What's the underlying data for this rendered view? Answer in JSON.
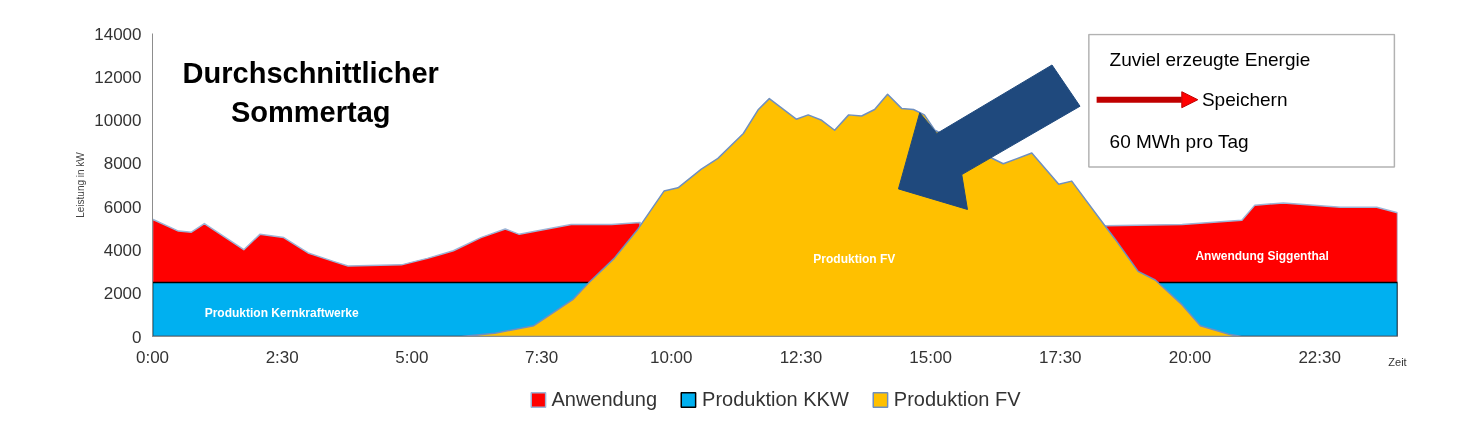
{
  "chart_data": {
    "type": "area",
    "title": "Durchschnittlicher\nSommertag",
    "xlabel": "Zeit",
    "ylabel": "Leistung in kW",
    "xlim": [
      0,
      24
    ],
    "ylim": [
      0,
      14000
    ],
    "xticks": [
      {
        "value": 0,
        "label": "0:00"
      },
      {
        "value": 2.5,
        "label": "2:30"
      },
      {
        "value": 5,
        "label": "5:00"
      },
      {
        "value": 7.5,
        "label": "7:30"
      },
      {
        "value": 10,
        "label": "10:00"
      },
      {
        "value": 12.5,
        "label": "12:30"
      },
      {
        "value": 15,
        "label": "15:00"
      },
      {
        "value": 17.5,
        "label": "17:30"
      },
      {
        "value": 20,
        "label": "20:00"
      },
      {
        "value": 22.5,
        "label": "22:30"
      }
    ],
    "yticks": [
      0,
      2000,
      4000,
      6000,
      8000,
      10000,
      12000,
      14000
    ],
    "grid": false,
    "legend": "bottom",
    "series": [
      {
        "name": "Anwendung",
        "color": "#ff0000",
        "x": [
          0,
          0.5,
          0.75,
          1.0,
          1.76,
          2.07,
          2.53,
          3.0,
          3.5,
          3.77,
          4.8,
          5.3,
          5.8,
          6.33,
          6.8,
          7.07,
          8.07,
          8.85,
          9.4,
          14,
          18.37,
          19.85,
          21.0,
          21.25,
          21.8,
          22.9,
          23.6,
          24
        ],
        "values": [
          5420,
          4870,
          4820,
          5220,
          4010,
          4720,
          4570,
          3860,
          3460,
          3260,
          3310,
          3610,
          3960,
          4570,
          4970,
          4720,
          5170,
          5170,
          5270,
          null,
          5120,
          5170,
          5370,
          6070,
          6170,
          5970,
          5970,
          5720
        ]
      },
      {
        "name": "Produktion KKW",
        "color": "#00b0f0",
        "x": [
          0,
          8.4,
          14,
          19.4,
          24
        ],
        "values": [
          2500,
          2500,
          null,
          2500,
          2500
        ]
      },
      {
        "name": "Produktion FV",
        "color": "#ffc000",
        "x": [
          0,
          5.95,
          6.6,
          7.35,
          8.1,
          8.4,
          8.9,
          9.36,
          9.86,
          10.13,
          10.58,
          10.9,
          11.39,
          11.68,
          11.89,
          12.41,
          12.64,
          12.9,
          13.15,
          13.42,
          13.67,
          13.92,
          14.17,
          14.44,
          14.67,
          14.88,
          15.08,
          16.4,
          16.95,
          17.47,
          17.72,
          18.36,
          18.55,
          19.0,
          19.33,
          19.85,
          20.2,
          20.75,
          21.0,
          24
        ],
        "values": [
          0,
          0,
          150,
          500,
          1700,
          2460,
          3610,
          4970,
          6720,
          6870,
          7730,
          8230,
          9380,
          10490,
          10990,
          10040,
          10240,
          9990,
          9530,
          10240,
          10190,
          10490,
          11190,
          10540,
          10490,
          10240,
          9530,
          7980,
          8480,
          7030,
          7180,
          5120,
          4520,
          3010,
          2610,
          1460,
          500,
          100,
          0,
          0
        ]
      }
    ],
    "annotations": [
      "Zuviel erzeugte Energie",
      "Speichern",
      "60 MWh pro Tag",
      "Produktion Kernkraftwerke",
      "Produktion FV",
      "Anwendung Siggenthal"
    ]
  }
}
